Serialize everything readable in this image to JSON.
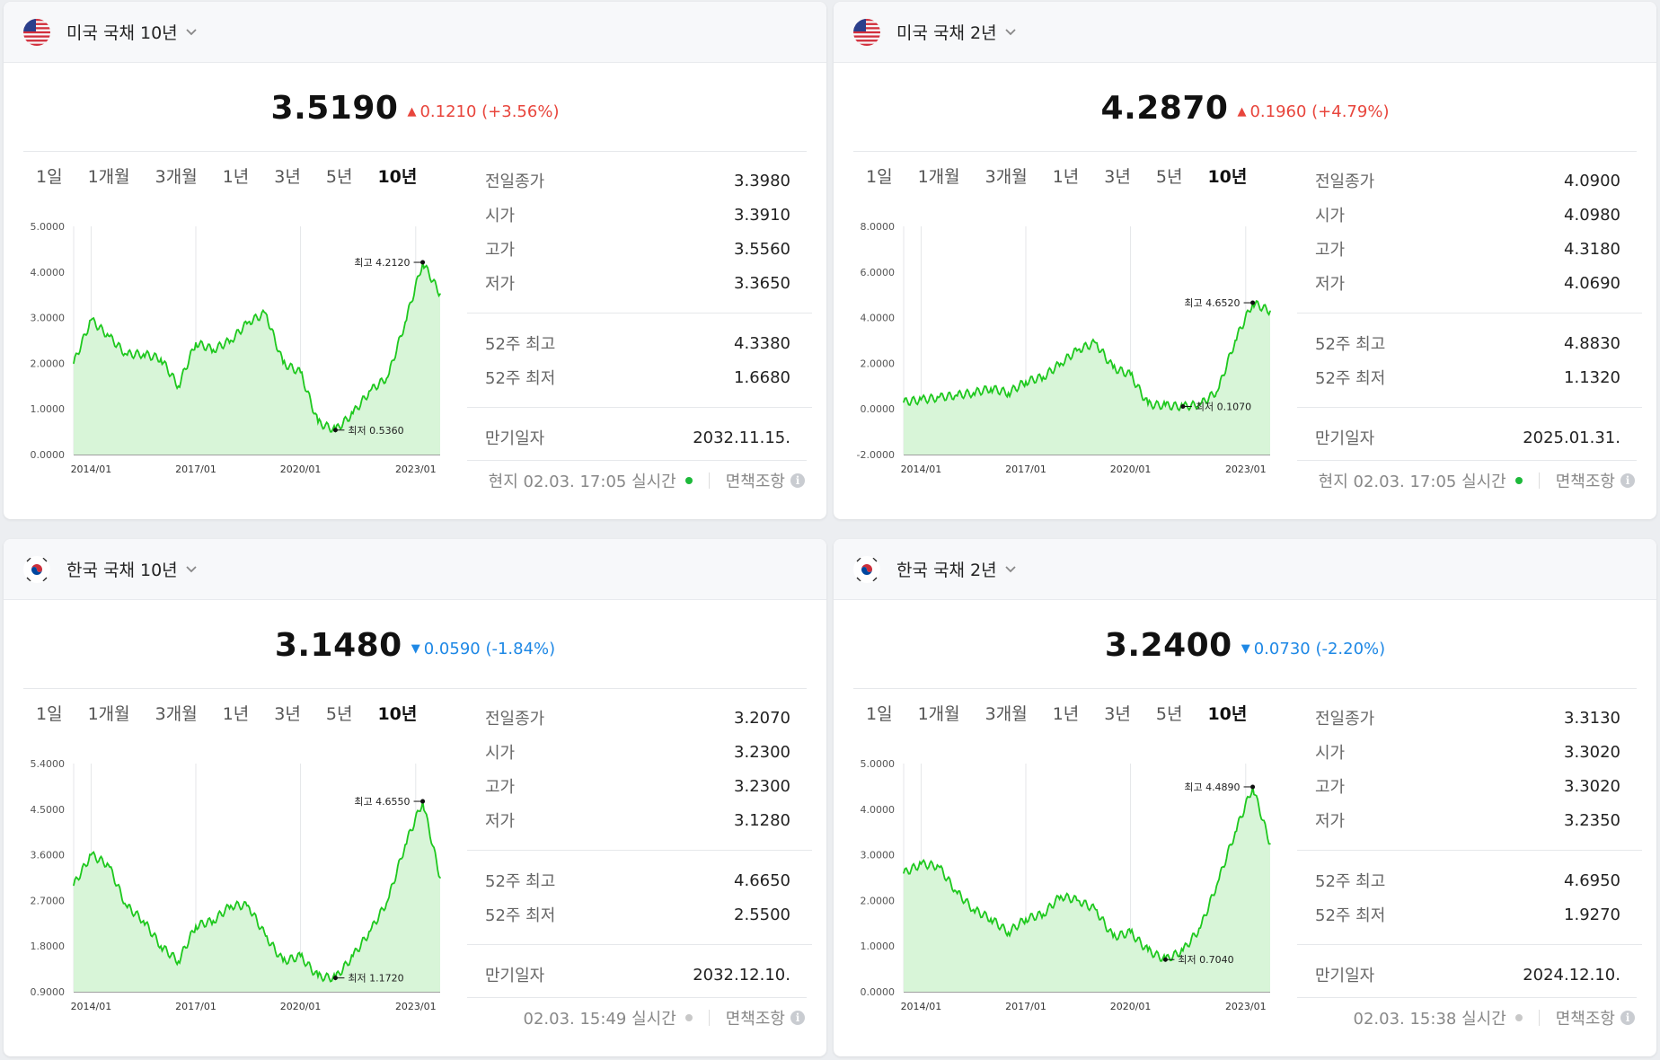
{
  "cards": [
    {
      "flag": "us-flag-icon",
      "title": "미국 국채 10년",
      "price": "3.5190",
      "direction": "up",
      "change": "0.1210 (+3.56%)",
      "periods": [
        "1일",
        "1개월",
        "3개월",
        "1년",
        "3년",
        "5년",
        "10년"
      ],
      "active_period": "10년",
      "stats": [
        {
          "label": "전일종가",
          "value": "3.3980"
        },
        {
          "label": "시가",
          "value": "3.3910"
        },
        {
          "label": "고가",
          "value": "3.5560"
        },
        {
          "label": "저가",
          "value": "3.3650"
        }
      ],
      "stats52": [
        {
          "label": "52주 최고",
          "value": "4.3380"
        },
        {
          "label": "52주 최저",
          "value": "1.6680"
        }
      ],
      "maturity": {
        "label": "만기일자",
        "value": "2032.11.15."
      },
      "footer_time": "현지 02.03. 17:05 실시간",
      "live": true,
      "disclaimer": "면책조항"
    },
    {
      "flag": "us-flag-icon",
      "title": "미국 국채 2년",
      "price": "4.2870",
      "direction": "up",
      "change": "0.1960 (+4.79%)",
      "periods": [
        "1일",
        "1개월",
        "3개월",
        "1년",
        "3년",
        "5년",
        "10년"
      ],
      "active_period": "10년",
      "stats": [
        {
          "label": "전일종가",
          "value": "4.0900"
        },
        {
          "label": "시가",
          "value": "4.0980"
        },
        {
          "label": "고가",
          "value": "4.3180"
        },
        {
          "label": "저가",
          "value": "4.0690"
        }
      ],
      "stats52": [
        {
          "label": "52주 최고",
          "value": "4.8830"
        },
        {
          "label": "52주 최저",
          "value": "1.1320"
        }
      ],
      "maturity": {
        "label": "만기일자",
        "value": "2025.01.31."
      },
      "footer_time": "현지 02.03. 17:05 실시간",
      "live": true,
      "disclaimer": "면책조항"
    },
    {
      "flag": "kr-flag-icon",
      "title": "한국 국채 10년",
      "price": "3.1480",
      "direction": "down",
      "change": "0.0590 (-1.84%)",
      "periods": [
        "1일",
        "1개월",
        "3개월",
        "1년",
        "3년",
        "5년",
        "10년"
      ],
      "active_period": "10년",
      "stats": [
        {
          "label": "전일종가",
          "value": "3.2070"
        },
        {
          "label": "시가",
          "value": "3.2300"
        },
        {
          "label": "고가",
          "value": "3.2300"
        },
        {
          "label": "저가",
          "value": "3.1280"
        }
      ],
      "stats52": [
        {
          "label": "52주 최고",
          "value": "4.6650"
        },
        {
          "label": "52주 최저",
          "value": "2.5500"
        }
      ],
      "maturity": {
        "label": "만기일자",
        "value": "2032.12.10."
      },
      "footer_time": "02.03. 15:49 실시간",
      "live": false,
      "disclaimer": "면책조항"
    },
    {
      "flag": "kr-flag-icon",
      "title": "한국 국채 2년",
      "price": "3.2400",
      "direction": "down",
      "change": "0.0730 (-2.20%)",
      "periods": [
        "1일",
        "1개월",
        "3개월",
        "1년",
        "3년",
        "5년",
        "10년"
      ],
      "active_period": "10년",
      "stats": [
        {
          "label": "전일종가",
          "value": "3.3130"
        },
        {
          "label": "시가",
          "value": "3.3020"
        },
        {
          "label": "고가",
          "value": "3.3020"
        },
        {
          "label": "저가",
          "value": "3.2350"
        }
      ],
      "stats52": [
        {
          "label": "52주 최고",
          "value": "4.6950"
        },
        {
          "label": "52주 최저",
          "value": "1.9270"
        }
      ],
      "maturity": {
        "label": "만기일자",
        "value": "2024.12.10."
      },
      "footer_time": "02.03. 15:38 실시간",
      "live": false,
      "disclaimer": "면책조항"
    }
  ],
  "chart_data": [
    {
      "type": "area",
      "x": [
        "2013/07",
        "2014/01",
        "2014/07",
        "2015/01",
        "2015/07",
        "2016/01",
        "2016/07",
        "2017/01",
        "2017/07",
        "2018/01",
        "2018/07",
        "2019/01",
        "2019/07",
        "2020/01",
        "2020/04",
        "2020/07",
        "2021/01",
        "2021/07",
        "2022/01",
        "2022/07",
        "2023/01",
        "2023/01"
      ],
      "values": [
        2.0,
        2.95,
        2.6,
        2.2,
        2.2,
        2.1,
        1.5,
        2.45,
        2.3,
        2.5,
        2.9,
        3.1,
        2.0,
        1.8,
        0.7,
        0.536,
        0.9,
        1.4,
        1.7,
        2.9,
        4.212,
        3.519
      ],
      "xticks": [
        "2014/01",
        "2017/01",
        "2020/01",
        "2023/01"
      ],
      "xtick_pos": [
        1,
        7,
        13,
        19.6
      ],
      "yticks": [
        "0.0000",
        "1.0000",
        "2.0000",
        "3.0000",
        "4.0000",
        "5.0000"
      ],
      "ylim": [
        0,
        5
      ],
      "high": {
        "label": "최고",
        "value": "4.2120",
        "index": 20
      },
      "low": {
        "label": "최저",
        "value": "0.5360",
        "index": 15
      }
    },
    {
      "type": "area",
      "x": [
        "2013/07",
        "2014/01",
        "2014/07",
        "2015/01",
        "2015/07",
        "2016/01",
        "2016/07",
        "2017/01",
        "2017/07",
        "2018/01",
        "2018/07",
        "2019/01",
        "2019/07",
        "2020/01",
        "2020/04",
        "2020/07",
        "2021/01",
        "2021/07",
        "2022/01",
        "2022/07",
        "2023/01",
        "2023/01"
      ],
      "values": [
        0.3,
        0.4,
        0.5,
        0.6,
        0.7,
        0.9,
        0.7,
        1.2,
        1.4,
        2.0,
        2.6,
        2.9,
        1.8,
        1.5,
        0.2,
        0.15,
        0.107,
        0.2,
        0.8,
        3.0,
        4.652,
        4.287
      ],
      "xticks": [
        "2014/01",
        "2017/01",
        "2020/01",
        "2023/01"
      ],
      "xtick_pos": [
        1,
        7,
        13,
        19.6
      ],
      "yticks": [
        "-2.0000",
        "0.0000",
        "2.0000",
        "4.0000",
        "6.0000",
        "8.0000"
      ],
      "ylim": [
        -2,
        8
      ],
      "high": {
        "label": "최고",
        "value": "4.6520",
        "index": 20
      },
      "low": {
        "label": "최저",
        "value": "0.1070",
        "index": 16
      }
    },
    {
      "type": "area",
      "x": [
        "2013/07",
        "2014/01",
        "2014/07",
        "2015/01",
        "2015/07",
        "2016/01",
        "2016/07",
        "2017/01",
        "2017/07",
        "2018/01",
        "2018/07",
        "2019/01",
        "2019/07",
        "2020/01",
        "2020/04",
        "2020/07",
        "2021/01",
        "2021/07",
        "2022/01",
        "2022/07",
        "2023/01",
        "2023/01"
      ],
      "values": [
        3.0,
        3.6,
        3.4,
        2.6,
        2.3,
        1.8,
        1.5,
        2.2,
        2.3,
        2.6,
        2.6,
        2.0,
        1.5,
        1.6,
        1.2,
        1.172,
        1.6,
        2.1,
        2.7,
        3.8,
        4.655,
        3.148
      ],
      "xticks": [
        "2014/01",
        "2017/01",
        "2020/01",
        "2023/01"
      ],
      "xtick_pos": [
        1,
        7,
        13,
        19.6
      ],
      "yticks": [
        "0.9000",
        "1.8000",
        "2.7000",
        "3.6000",
        "4.5000",
        "5.4000"
      ],
      "ylim": [
        0.9,
        5.4
      ],
      "high": {
        "label": "최고",
        "value": "4.6550",
        "index": 20
      },
      "low": {
        "label": "최저",
        "value": "1.1720",
        "index": 15
      }
    },
    {
      "type": "area",
      "x": [
        "2013/07",
        "2014/01",
        "2014/07",
        "2015/01",
        "2015/07",
        "2016/01",
        "2016/07",
        "2017/01",
        "2017/07",
        "2018/01",
        "2018/07",
        "2019/01",
        "2019/07",
        "2020/01",
        "2020/04",
        "2020/07",
        "2021/01",
        "2021/07",
        "2022/01",
        "2022/07",
        "2023/01",
        "2023/01"
      ],
      "values": [
        2.6,
        2.8,
        2.75,
        2.2,
        1.8,
        1.6,
        1.3,
        1.6,
        1.7,
        2.1,
        2.0,
        1.8,
        1.2,
        1.3,
        0.9,
        0.704,
        0.9,
        1.4,
        2.4,
        3.5,
        4.489,
        3.24
      ],
      "xticks": [
        "2014/01",
        "2017/01",
        "2020/01",
        "2023/01"
      ],
      "xtick_pos": [
        1,
        7,
        13,
        19.6
      ],
      "yticks": [
        "0.0000",
        "1.0000",
        "2.0000",
        "3.0000",
        "4.0000",
        "5.0000"
      ],
      "ylim": [
        0,
        5
      ],
      "high": {
        "label": "최고",
        "value": "4.4890",
        "index": 20
      },
      "low": {
        "label": "최저",
        "value": "0.7040",
        "index": 15
      }
    }
  ],
  "colors": {
    "line": "#1ec81e",
    "fill": "#d8f5d8",
    "up": "#e8453c",
    "down": "#1e88e5",
    "live": "#1db93a"
  }
}
